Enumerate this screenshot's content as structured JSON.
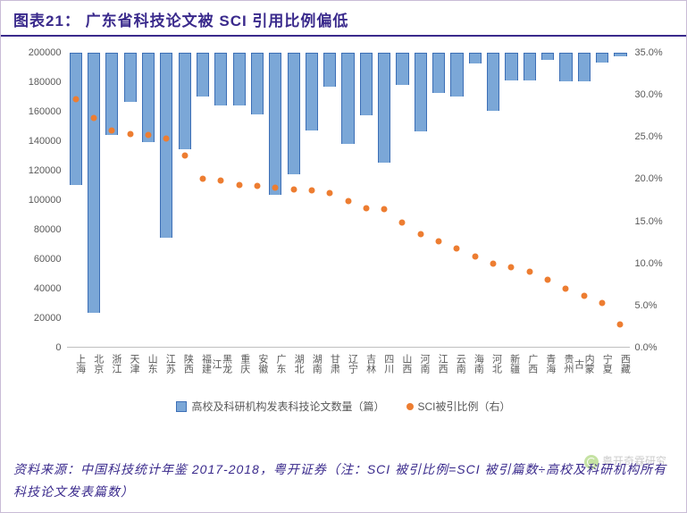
{
  "header": {
    "title": "图表21： 广东省科技论文被 SCI 引用比例偏低"
  },
  "chart": {
    "type": "bar+scatter-dual-axis",
    "bar_color": "#7ba7d7",
    "bar_border": "#3d6fb6",
    "dot_color": "#ed7d31",
    "axis_color": "#bfbfbf",
    "text_color": "#595959",
    "categories": [
      "上海",
      "北京",
      "浙江",
      "天津",
      "山东",
      "江苏",
      "陕西",
      "福建",
      "黑龙江",
      "重庆",
      "安徽",
      "广东",
      "湖北",
      "湖南",
      "甘肃",
      "辽宁",
      "吉林",
      "四川",
      "山西",
      "河南",
      "江西",
      "云南",
      "海南",
      "河北",
      "新疆",
      "广西",
      "青海",
      "贵州",
      "内蒙古",
      "宁夏",
      "西藏"
    ],
    "bars": [
      89000,
      176000,
      55000,
      33000,
      60000,
      125000,
      65000,
      29000,
      35000,
      35000,
      41000,
      96000,
      82000,
      52000,
      22500,
      61000,
      42000,
      74000,
      21000,
      53000,
      26500,
      29000,
      6500,
      38500,
      18000,
      18000,
      4000,
      18500,
      18500,
      6000,
      2000
    ],
    "dots_pct": [
      29.5,
      27.3,
      25.8,
      25.3,
      25.2,
      24.8,
      22.8,
      20.0,
      19.8,
      19.3,
      19.2,
      19.0,
      18.8,
      18.7,
      18.4,
      17.4,
      16.5,
      16.4,
      14.8,
      13.5,
      12.6,
      11.8,
      10.8,
      10.0,
      9.5,
      9.0,
      8.1,
      7.0,
      6.2,
      5.3,
      2.8
    ],
    "yL": {
      "min": 0,
      "max": 200000,
      "step": 20000
    },
    "yR": {
      "min": 0,
      "max": 35,
      "step": 5,
      "fmt_suffix": "%",
      "fmt_decimals": 1
    },
    "legend": {
      "bar": "高校及科研机构发表科技论文数量（篇）",
      "dot": "SCI被引比例（右）"
    }
  },
  "source": {
    "text": "资料来源：中国科技统计年鉴 2017-2018，粤开证券（注：SCI 被引比例=SCI 被引篇数÷高校及科研机构所有科技论文发表篇数）"
  },
  "watermark": {
    "text": "粤开奇霖研究"
  }
}
